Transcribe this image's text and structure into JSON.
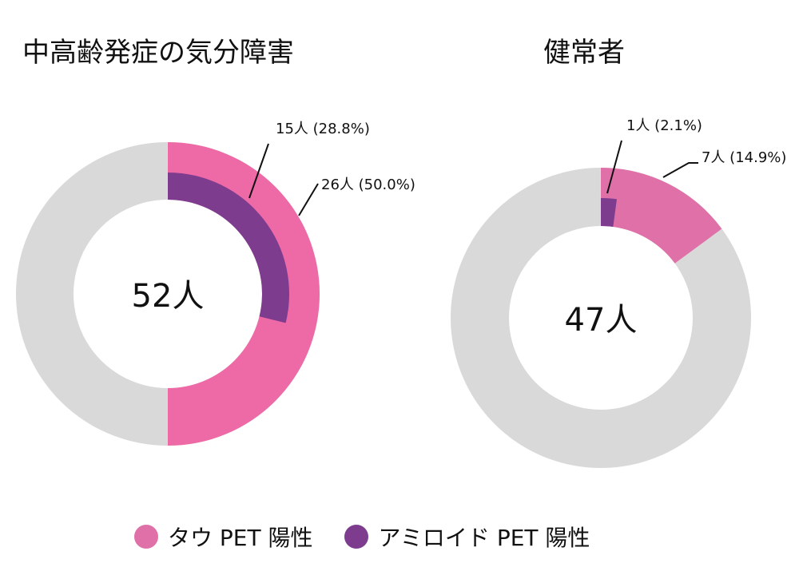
{
  "colors": {
    "tau": "#EE6AA7",
    "tau_right": "#E070A8",
    "amyloid": "#7D3C8E",
    "background_ring": "#D9D9D9",
    "text": "#111111"
  },
  "chart_data": [
    {
      "type": "pie",
      "variant": "nested-donut",
      "title": "中高齢発症の気分障害",
      "center_label": "52人",
      "total": 52,
      "series": [
        {
          "name": "タウ PET 陽性",
          "count": 26,
          "percent": 50.0,
          "label": "26人 (50.0%)"
        },
        {
          "name": "アミロイド PET 陽性",
          "count": 15,
          "percent": 28.8,
          "label": "15人 (28.8%)"
        }
      ]
    },
    {
      "type": "pie",
      "variant": "nested-donut",
      "title": "健常者",
      "center_label": "47人",
      "total": 47,
      "series": [
        {
          "name": "タウ PET 陽性",
          "count": 7,
          "percent": 14.9,
          "label": "7人 (14.9%)"
        },
        {
          "name": "アミロイド PET 陽性",
          "count": 1,
          "percent": 2.1,
          "label": "1人 (2.1%)"
        }
      ]
    }
  ],
  "legend": {
    "items": [
      {
        "label": "タウ PET 陽性",
        "color": "#E070A8"
      },
      {
        "label": "アミロイド PET 陽性",
        "color": "#7D3C8E"
      }
    ]
  }
}
